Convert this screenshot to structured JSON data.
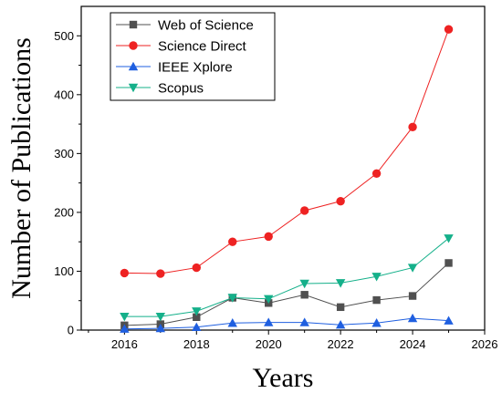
{
  "chart_data": {
    "type": "line",
    "title": "",
    "xlabel": "Years",
    "ylabel": "Number of Publications",
    "xlim": [
      2014.8,
      2026
    ],
    "ylim": [
      0,
      550
    ],
    "xticks": [
      2016,
      2018,
      2020,
      2022,
      2024,
      2026
    ],
    "yticks": [
      0,
      100,
      200,
      300,
      400,
      500
    ],
    "legend_position": "top-left",
    "grid": false,
    "x": [
      2016,
      2017,
      2018,
      2019,
      2020,
      2021,
      2022,
      2023,
      2024,
      2025
    ],
    "series": [
      {
        "name": "Web of Science",
        "marker": "square",
        "color": "#505050",
        "values": [
          8,
          10,
          22,
          55,
          46,
          60,
          39,
          51,
          58,
          114
        ]
      },
      {
        "name": "Science Direct",
        "marker": "circle",
        "color": "#ee2222",
        "values": [
          97,
          96,
          106,
          150,
          159,
          203,
          219,
          266,
          345,
          511
        ]
      },
      {
        "name": "IEEE Xplore",
        "marker": "triangle-up",
        "color": "#1f5fe0",
        "values": [
          2,
          3,
          5,
          12,
          13,
          13,
          9,
          12,
          20,
          16
        ]
      },
      {
        "name": "Scopus",
        "marker": "triangle-down",
        "color": "#15b08a",
        "values": [
          23,
          23,
          32,
          55,
          53,
          79,
          80,
          91,
          106,
          156
        ]
      }
    ]
  }
}
